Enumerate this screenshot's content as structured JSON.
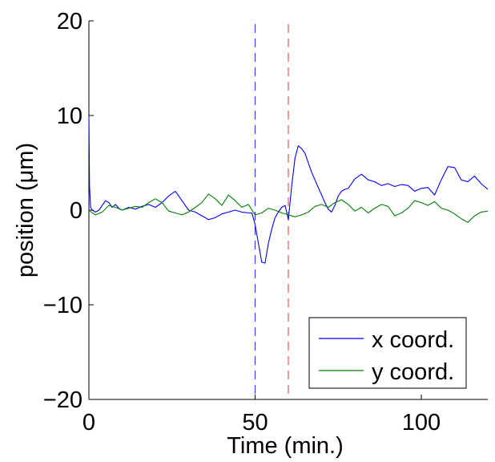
{
  "chart_data": {
    "type": "line",
    "xlabel": "Time (min.)",
    "ylabel": "position (μm)",
    "xlim": [
      0,
      120
    ],
    "ylim": [
      -20,
      20
    ],
    "xticks": [
      0,
      50,
      100
    ],
    "yticks": [
      -20,
      -10,
      0,
      10,
      20
    ],
    "ytick_labels": [
      "−20",
      "−10",
      "0",
      "10",
      "20"
    ],
    "grid": false,
    "legend_position": "bottom-right",
    "vlines": [
      {
        "x": 50,
        "color": "#3344ee",
        "style": "dashed"
      },
      {
        "x": 60,
        "color": "#ee5555",
        "style": "dashed"
      }
    ],
    "series": [
      {
        "name": "x coord.",
        "color": "#0000ff",
        "x": [
          0,
          0.2,
          0.5,
          1,
          2,
          3,
          4,
          5,
          6,
          7,
          8,
          9,
          10,
          12,
          14,
          16,
          18,
          20,
          22,
          24,
          26,
          28,
          30,
          32,
          34,
          36,
          38,
          40,
          42,
          44,
          46,
          48,
          49,
          50,
          51,
          52,
          53,
          54,
          55,
          56,
          57,
          58,
          59,
          60,
          61,
          62,
          63,
          64,
          65,
          66,
          67,
          68,
          69,
          70,
          71,
          72,
          73,
          74,
          75,
          76,
          77,
          78,
          80,
          82,
          84,
          86,
          88,
          90,
          92,
          94,
          96,
          98,
          100,
          102,
          104,
          106,
          108,
          110,
          112,
          114,
          116,
          118,
          120
        ],
        "y": [
          9.8,
          2.5,
          0.3,
          0.0,
          -0.2,
          0.0,
          0.5,
          1.0,
          0.8,
          0.3,
          0.6,
          0.2,
          0.0,
          0.3,
          0.1,
          0.4,
          0.6,
          0.3,
          0.8,
          1.5,
          2.0,
          1.0,
          0.0,
          -0.2,
          -0.6,
          -1.0,
          -0.8,
          -0.4,
          -0.2,
          0.0,
          -0.2,
          -0.3,
          -0.3,
          -1.5,
          -3.5,
          -5.5,
          -5.6,
          -3.5,
          -2.0,
          -0.8,
          -0.2,
          0.3,
          0.5,
          -1.0,
          2.5,
          5.5,
          6.8,
          6.5,
          6.0,
          5.0,
          4.0,
          3.2,
          2.4,
          1.6,
          0.8,
          0.1,
          -0.2,
          0.5,
          1.5,
          2.0,
          2.2,
          2.3,
          3.3,
          3.8,
          3.2,
          3.0,
          2.6,
          2.8,
          2.5,
          2.7,
          2.6,
          2.0,
          2.3,
          2.4,
          1.6,
          3.2,
          4.6,
          4.5,
          3.2,
          3.0,
          3.6,
          2.8,
          2.2
        ]
      },
      {
        "name": "y coord.",
        "color": "#007f00",
        "x": [
          0,
          1,
          2,
          4,
          6,
          8,
          10,
          12,
          14,
          16,
          18,
          20,
          22,
          24,
          26,
          28,
          30,
          32,
          34,
          36,
          38,
          40,
          42,
          44,
          46,
          48,
          50,
          52,
          54,
          56,
          58,
          60,
          62,
          64,
          66,
          68,
          70,
          72,
          74,
          76,
          78,
          80,
          82,
          84,
          86,
          88,
          90,
          92,
          94,
          96,
          98,
          100,
          102,
          104,
          106,
          108,
          110,
          112,
          114,
          116,
          118,
          120
        ],
        "y": [
          0.0,
          -0.3,
          -0.5,
          -0.2,
          0.5,
          0.3,
          0.0,
          0.2,
          0.4,
          0.3,
          0.8,
          1.2,
          0.8,
          -0.1,
          -0.3,
          -0.5,
          -0.2,
          0.3,
          0.8,
          1.7,
          1.2,
          0.5,
          1.6,
          1.0,
          0.3,
          0.6,
          -0.5,
          -0.3,
          0.2,
          0.0,
          -0.3,
          -0.5,
          -0.7,
          -0.5,
          -0.2,
          0.4,
          0.6,
          0.3,
          0.8,
          1.1,
          0.6,
          -0.1,
          0.3,
          -0.3,
          0.2,
          0.6,
          0.4,
          -0.6,
          -0.3,
          0.2,
          1.0,
          0.8,
          0.5,
          0.9,
          0.2,
          0.0,
          -0.4,
          -0.9,
          -1.3,
          -0.6,
          -0.2,
          -0.1
        ]
      }
    ]
  }
}
